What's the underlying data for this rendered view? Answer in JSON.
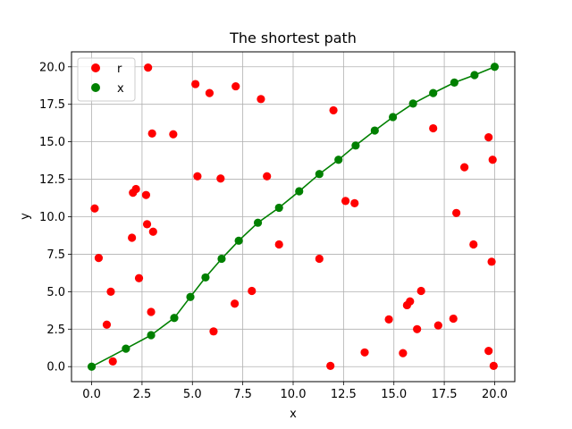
{
  "chart_data": {
    "type": "scatter",
    "title": "The shortest path",
    "xlabel": "x",
    "ylabel": "y",
    "xlim": [
      -1.0,
      21.0
    ],
    "ylim": [
      -1.0,
      21.0
    ],
    "xticks": [
      "0.0",
      "2.5",
      "5.0",
      "7.5",
      "10.0",
      "12.5",
      "15.0",
      "17.5",
      "20.0"
    ],
    "yticks": [
      "0.0",
      "2.5",
      "5.0",
      "7.5",
      "10.0",
      "12.5",
      "15.0",
      "17.5",
      "20.0"
    ],
    "grid": true,
    "legend_position": "top-left",
    "series": [
      {
        "name": "r",
        "kind": "scatter",
        "color": "#ff0000",
        "points": [
          [
            0.15,
            10.55
          ],
          [
            0.35,
            7.25
          ],
          [
            0.75,
            2.8
          ],
          [
            0.95,
            5.0
          ],
          [
            1.05,
            0.35
          ],
          [
            2.0,
            8.6
          ],
          [
            2.05,
            11.6
          ],
          [
            2.2,
            11.85
          ],
          [
            2.35,
            5.9
          ],
          [
            2.7,
            11.45
          ],
          [
            2.75,
            9.5
          ],
          [
            2.8,
            19.95
          ],
          [
            2.95,
            3.65
          ],
          [
            3.0,
            15.55
          ],
          [
            3.05,
            9.0
          ],
          [
            4.05,
            15.5
          ],
          [
            5.15,
            18.85
          ],
          [
            5.25,
            12.7
          ],
          [
            5.85,
            18.25
          ],
          [
            6.05,
            2.35
          ],
          [
            6.4,
            12.55
          ],
          [
            7.1,
            4.2
          ],
          [
            7.15,
            18.7
          ],
          [
            7.95,
            5.05
          ],
          [
            8.4,
            17.85
          ],
          [
            8.7,
            12.7
          ],
          [
            9.3,
            8.15
          ],
          [
            11.3,
            7.2
          ],
          [
            11.85,
            0.05
          ],
          [
            12.0,
            17.1
          ],
          [
            12.6,
            11.05
          ],
          [
            13.05,
            10.9
          ],
          [
            13.55,
            0.95
          ],
          [
            14.75,
            3.15
          ],
          [
            15.45,
            0.9
          ],
          [
            15.65,
            4.1
          ],
          [
            15.8,
            4.35
          ],
          [
            16.15,
            2.5
          ],
          [
            16.35,
            5.05
          ],
          [
            16.95,
            15.9
          ],
          [
            17.2,
            2.75
          ],
          [
            17.95,
            3.2
          ],
          [
            18.1,
            10.25
          ],
          [
            18.5,
            13.3
          ],
          [
            18.95,
            8.15
          ],
          [
            19.7,
            1.05
          ],
          [
            19.7,
            15.3
          ],
          [
            19.85,
            7.0
          ],
          [
            19.9,
            13.8
          ],
          [
            19.95,
            0.05
          ]
        ]
      },
      {
        "name": "x",
        "kind": "line-markers",
        "color": "#008000",
        "points": [
          [
            0.0,
            0.0
          ],
          [
            1.7,
            1.2
          ],
          [
            2.95,
            2.1
          ],
          [
            4.1,
            3.25
          ],
          [
            4.9,
            4.65
          ],
          [
            5.65,
            5.95
          ],
          [
            6.45,
            7.2
          ],
          [
            7.3,
            8.4
          ],
          [
            8.25,
            9.6
          ],
          [
            9.3,
            10.6
          ],
          [
            10.3,
            11.7
          ],
          [
            11.3,
            12.85
          ],
          [
            12.25,
            13.8
          ],
          [
            13.1,
            14.75
          ],
          [
            14.05,
            15.75
          ],
          [
            14.95,
            16.65
          ],
          [
            15.95,
            17.55
          ],
          [
            16.95,
            18.25
          ],
          [
            18.0,
            18.95
          ],
          [
            19.0,
            19.45
          ],
          [
            20.0,
            20.0
          ]
        ]
      }
    ]
  }
}
